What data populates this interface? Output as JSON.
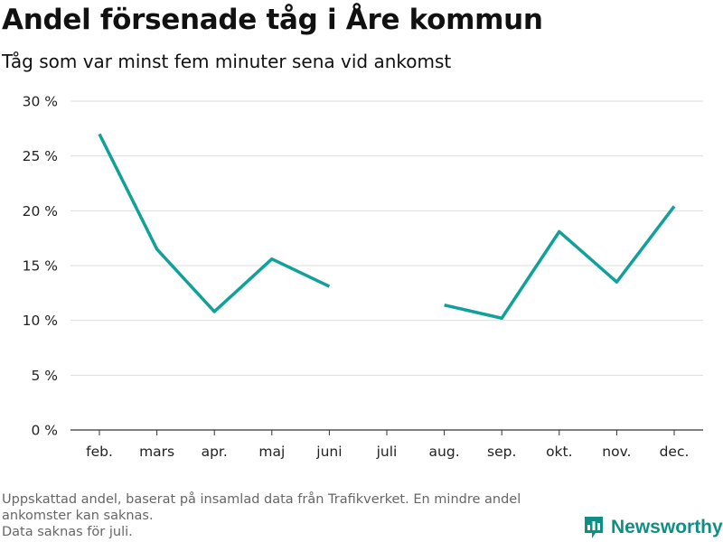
{
  "title": "Andel försenade tåg i Åre kommun",
  "subtitle": "Tåg som var minst fem minuter sena vid ankomst",
  "footnote_lines": [
    "Uppskattad andel, baserat på insamlad data från Trafikverket. En mindre andel",
    "ankomster kan saknas.",
    "Data saknas för juli."
  ],
  "brand": {
    "name": "Newsworthy",
    "icon": "newsworthy-logo-icon",
    "color": "#0f8f84"
  },
  "chart_data": {
    "type": "line",
    "categories": [
      "feb.",
      "mars",
      "apr.",
      "maj",
      "juni",
      "juli",
      "aug.",
      "sep.",
      "okt.",
      "nov.",
      "dec."
    ],
    "series": [
      {
        "values": [
          27.0,
          16.5,
          10.8,
          15.6,
          13.1,
          null,
          11.4,
          10.2,
          18.1,
          13.5,
          20.4
        ],
        "color": "#11a19a"
      }
    ],
    "ylim": [
      0,
      30
    ],
    "yticks": [
      0,
      5,
      10,
      15,
      20,
      25,
      30
    ],
    "ytick_labels": [
      "0 %",
      "5 %",
      "10 %",
      "15 %",
      "20 %",
      "25 %",
      "30 %"
    ],
    "grid": true,
    "xlabel": "",
    "ylabel": ""
  }
}
